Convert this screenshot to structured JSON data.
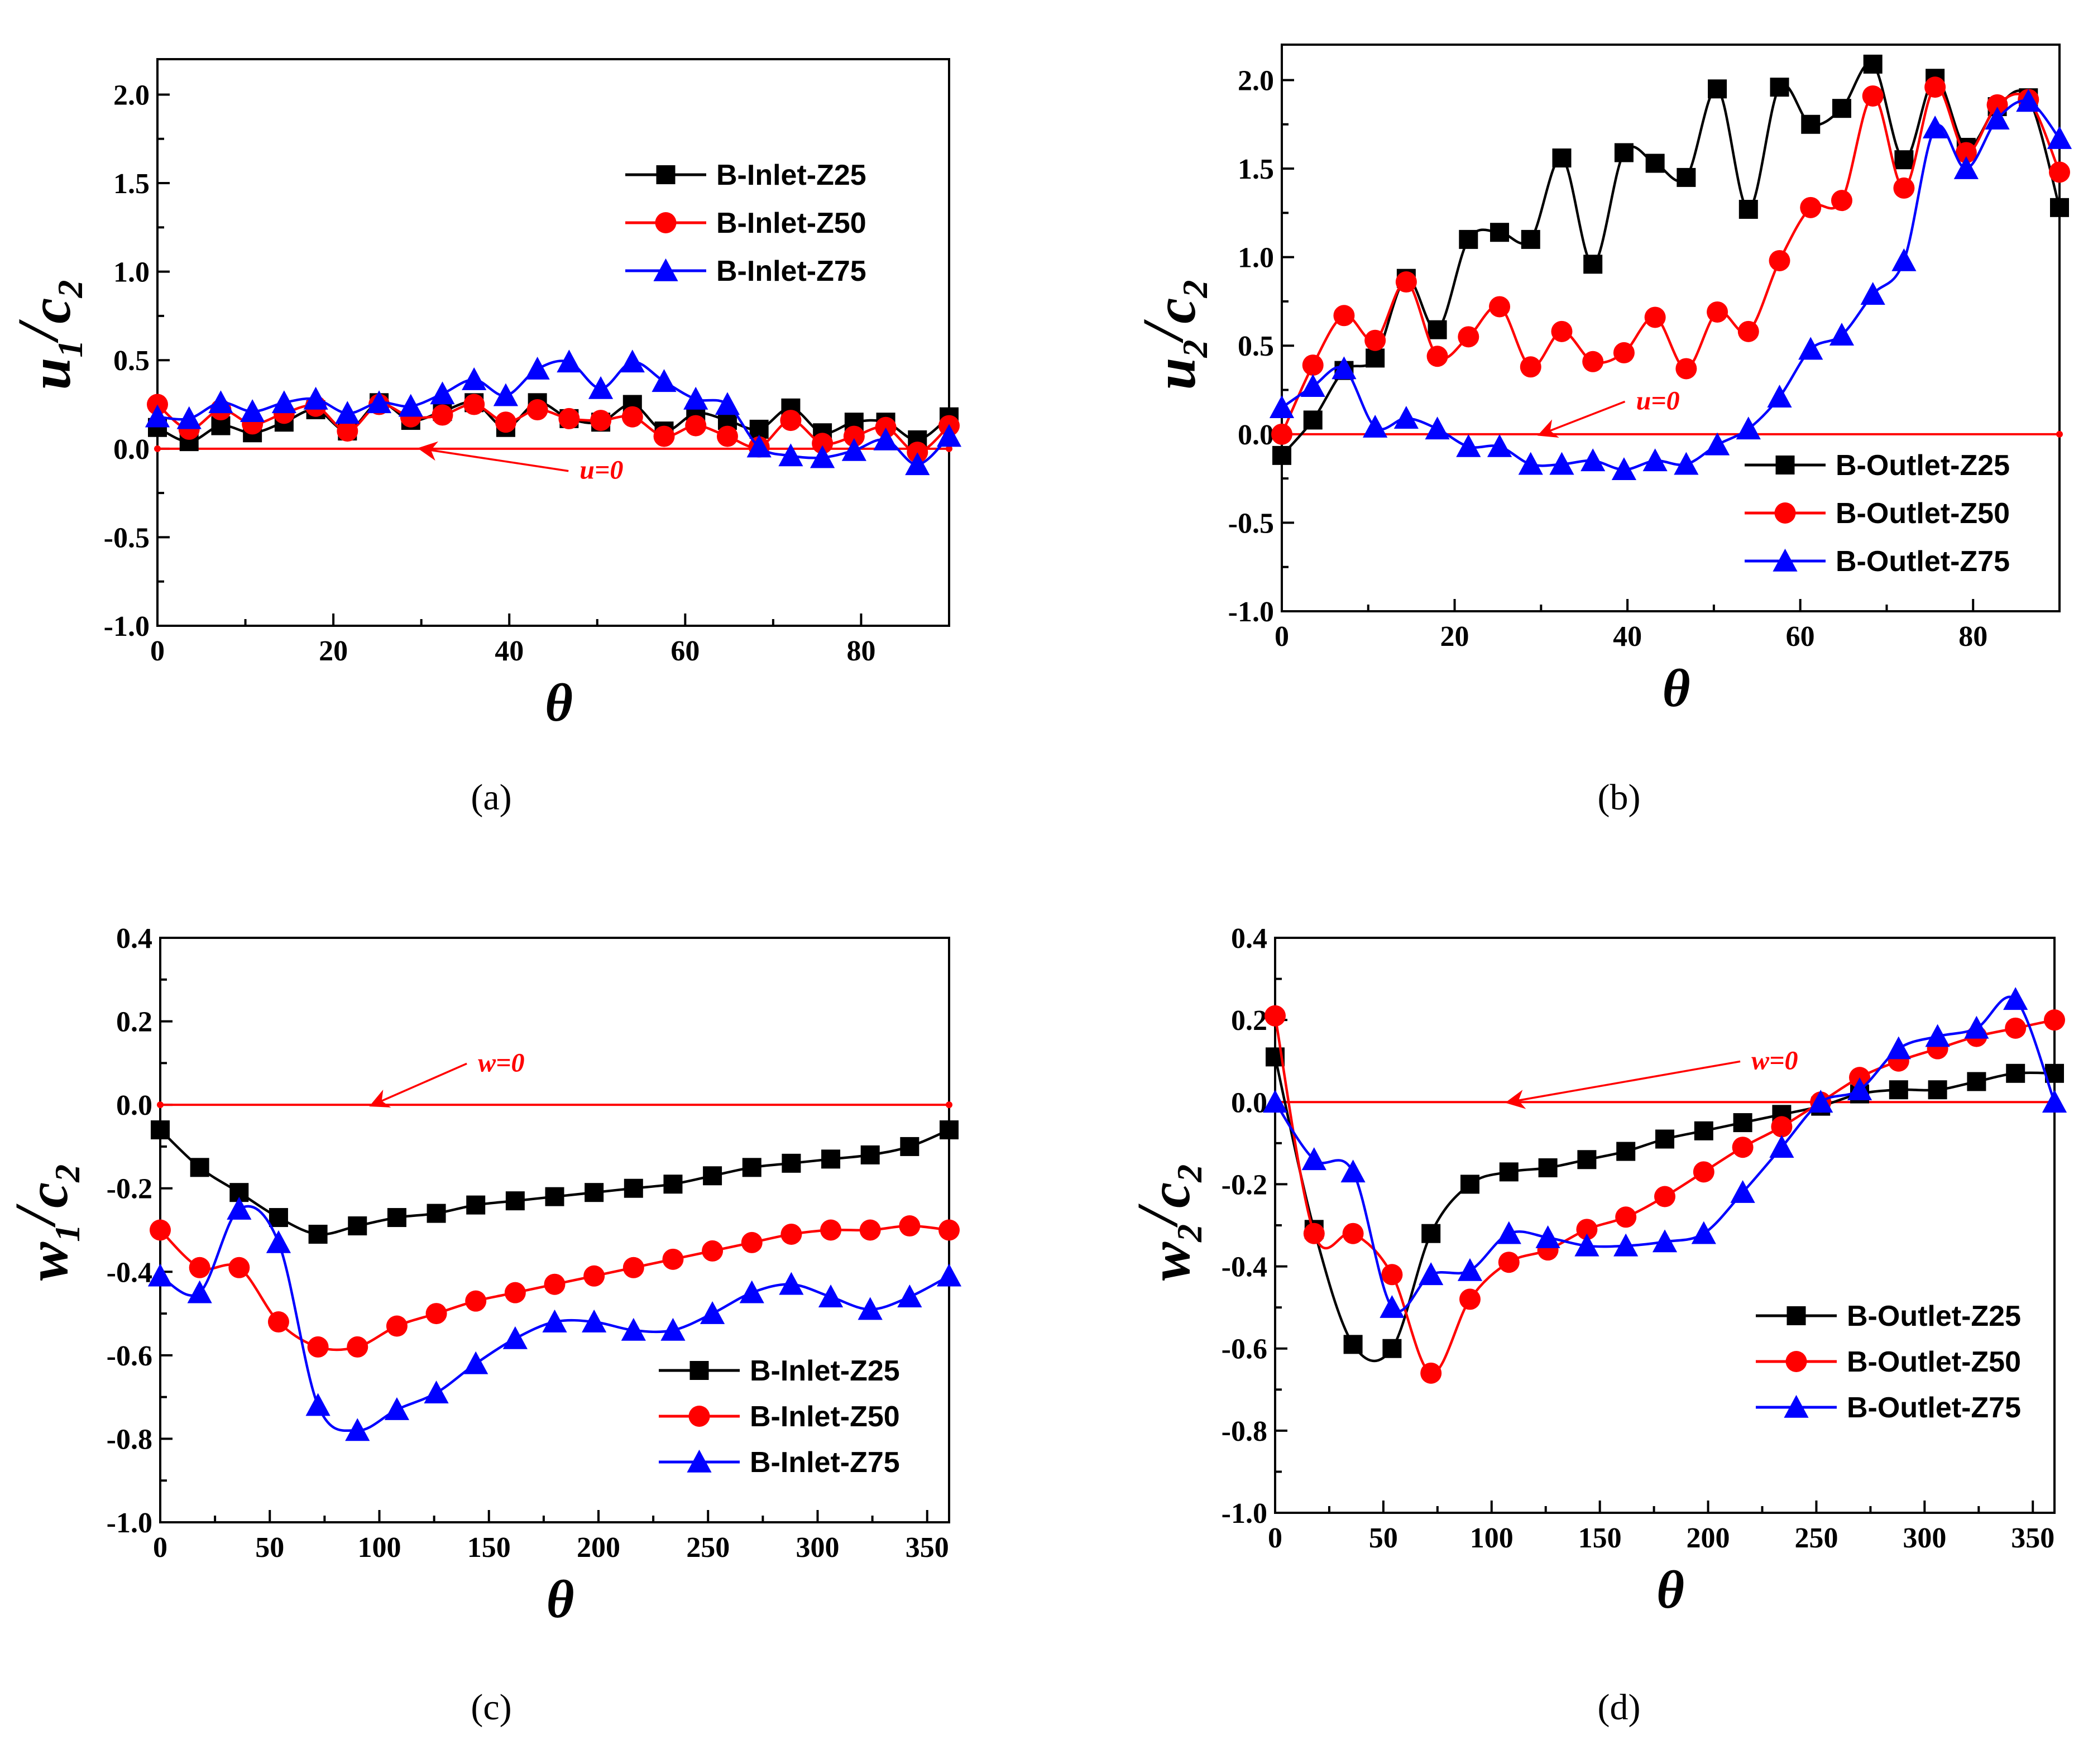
{
  "figure": {
    "captions": [
      "(a)",
      "(b)",
      "(c)",
      "(d)"
    ],
    "x_axis_symbol": "θ"
  },
  "chart_data": [
    {
      "id": "a",
      "type": "line",
      "caption": "(a)",
      "ylabel_main": "u",
      "ylabel_sub": "1",
      "ylabel_den": "c",
      "ylabel_den_sub": "2",
      "xlabel": "θ",
      "xlim": [
        0,
        90
      ],
      "ylim": [
        -1.0,
        2.2
      ],
      "xticks": [
        0,
        20,
        40,
        60,
        80
      ],
      "yticks": [
        -1.0,
        -0.5,
        0.0,
        0.5,
        1.0,
        1.5,
        2.0
      ],
      "ytick_labels": [
        "-1.0",
        "-0.5",
        "0.0",
        "0.5",
        "1.0",
        "1.5",
        "2.0"
      ],
      "legend_position": "upper-right",
      "reference": {
        "value": 0,
        "label": "u=0",
        "label_xy": [
          48,
          -0.17
        ],
        "arrow_to": [
          30,
          0.0
        ]
      },
      "series": [
        {
          "name": "B-Inlet-Z25",
          "color": "#000000",
          "marker": "square",
          "x": [
            0,
            3.6,
            7.2,
            10.8,
            14.4,
            18,
            21.6,
            25.2,
            28.8,
            32.4,
            36,
            39.6,
            43.2,
            46.8,
            50.4,
            54,
            57.6,
            61.2,
            64.8,
            68.4,
            72,
            75.6,
            79.2,
            82.8,
            86.4,
            90
          ],
          "y": [
            0.12,
            0.04,
            0.13,
            0.09,
            0.15,
            0.22,
            0.1,
            0.26,
            0.16,
            0.21,
            0.26,
            0.12,
            0.26,
            0.17,
            0.15,
            0.25,
            0.1,
            0.2,
            0.16,
            0.11,
            0.23,
            0.09,
            0.15,
            0.15,
            0.05,
            0.18
          ]
        },
        {
          "name": "B-Inlet-Z50",
          "color": "#ff0000",
          "marker": "circle",
          "x": [
            0,
            3.6,
            7.2,
            10.8,
            14.4,
            18,
            21.6,
            25.2,
            28.8,
            32.4,
            36,
            39.6,
            43.2,
            46.8,
            50.4,
            54,
            57.6,
            61.2,
            64.8,
            68.4,
            72,
            75.6,
            79.2,
            82.8,
            86.4,
            90
          ],
          "y": [
            0.25,
            0.11,
            0.22,
            0.14,
            0.2,
            0.24,
            0.1,
            0.25,
            0.18,
            0.19,
            0.25,
            0.15,
            0.22,
            0.17,
            0.16,
            0.18,
            0.07,
            0.13,
            0.07,
            0.01,
            0.16,
            0.03,
            0.07,
            0.12,
            -0.02,
            0.13
          ]
        },
        {
          "name": "B-Inlet-Z75",
          "color": "#0000ff",
          "marker": "triangle",
          "x": [
            0,
            3.6,
            7.2,
            10.8,
            14.4,
            18,
            21.6,
            25.2,
            28.8,
            32.4,
            36,
            39.6,
            43.2,
            46.8,
            50.4,
            54,
            57.6,
            61.2,
            64.8,
            68.4,
            72,
            75.6,
            79.2,
            82.8,
            86.4,
            90
          ],
          "y": [
            0.18,
            0.17,
            0.26,
            0.21,
            0.26,
            0.28,
            0.2,
            0.26,
            0.24,
            0.31,
            0.39,
            0.3,
            0.45,
            0.49,
            0.34,
            0.49,
            0.38,
            0.28,
            0.25,
            0.01,
            -0.04,
            -0.05,
            -0.01,
            0.05,
            -0.09,
            0.07
          ]
        }
      ]
    },
    {
      "id": "b",
      "type": "line",
      "caption": "(b)",
      "ylabel_main": "u",
      "ylabel_sub": "2",
      "ylabel_den": "c",
      "ylabel_den_sub": "2",
      "xlabel": "θ",
      "xlim": [
        0,
        90
      ],
      "ylim": [
        -1.0,
        2.2
      ],
      "xticks": [
        0,
        20,
        40,
        60,
        80
      ],
      "yticks": [
        -1.0,
        -0.5,
        0.0,
        0.5,
        1.0,
        1.5,
        2.0
      ],
      "ytick_labels": [
        "-1.0",
        "-0.5",
        "0.0",
        "0.5",
        "1.0",
        "1.5",
        "2.0"
      ],
      "legend_position": "lower-right",
      "reference": {
        "value": 0,
        "label": "u=0",
        "label_xy": [
          41,
          0.14
        ],
        "arrow_to": [
          30,
          0.0
        ]
      },
      "series": [
        {
          "name": "B-Outlet-Z25",
          "color": "#000000",
          "marker": "square",
          "x": [
            0,
            3.6,
            7.2,
            10.8,
            14.4,
            18,
            21.6,
            25.2,
            28.8,
            32.4,
            36,
            39.6,
            43.2,
            46.8,
            50.4,
            54,
            57.6,
            61.2,
            64.8,
            68.4,
            72,
            75.6,
            79.2,
            82.8,
            86.4,
            90
          ],
          "y": [
            -0.12,
            0.08,
            0.36,
            0.43,
            0.88,
            0.59,
            1.1,
            1.14,
            1.1,
            1.56,
            0.96,
            1.59,
            1.53,
            1.45,
            1.95,
            1.27,
            1.96,
            1.75,
            1.84,
            2.09,
            1.55,
            2.01,
            1.62,
            1.85,
            1.9,
            1.28
          ]
        },
        {
          "name": "B-Outlet-Z50",
          "color": "#ff0000",
          "marker": "circle",
          "x": [
            0,
            3.6,
            7.2,
            10.8,
            14.4,
            18,
            21.6,
            25.2,
            28.8,
            32.4,
            36,
            39.6,
            43.2,
            46.8,
            50.4,
            54,
            57.6,
            61.2,
            64.8,
            68.4,
            72,
            75.6,
            79.2,
            82.8,
            86.4,
            90
          ],
          "y": [
            0.0,
            0.39,
            0.67,
            0.53,
            0.86,
            0.44,
            0.55,
            0.72,
            0.38,
            0.58,
            0.41,
            0.46,
            0.66,
            0.37,
            0.69,
            0.58,
            0.98,
            1.28,
            1.32,
            1.91,
            1.39,
            1.96,
            1.59,
            1.86,
            1.89,
            1.48
          ]
        },
        {
          "name": "B-Outlet-Z75",
          "color": "#0000ff",
          "marker": "triangle",
          "x": [
            0,
            3.6,
            7.2,
            10.8,
            14.4,
            18,
            21.6,
            25.2,
            28.8,
            32.4,
            36,
            39.6,
            43.2,
            46.8,
            50.4,
            54,
            57.6,
            61.2,
            64.8,
            68.4,
            72,
            75.6,
            79.2,
            82.8,
            86.4,
            90
          ],
          "y": [
            0.15,
            0.27,
            0.37,
            0.04,
            0.09,
            0.03,
            -0.07,
            -0.07,
            -0.17,
            -0.17,
            -0.15,
            -0.2,
            -0.15,
            -0.17,
            -0.06,
            0.03,
            0.21,
            0.48,
            0.56,
            0.79,
            0.98,
            1.73,
            1.5,
            1.78,
            1.88,
            1.67
          ]
        }
      ]
    },
    {
      "id": "c",
      "type": "line",
      "caption": "(c)",
      "ylabel_main": "w",
      "ylabel_sub": "1",
      "ylabel_den": "c",
      "ylabel_den_sub": "2",
      "xlabel": "θ",
      "xlim": [
        0,
        360
      ],
      "ylim": [
        -1.0,
        0.4
      ],
      "xticks": [
        0,
        50,
        100,
        150,
        200,
        250,
        300,
        350
      ],
      "yticks": [
        -1.0,
        -0.8,
        -0.6,
        -0.4,
        -0.2,
        0.0,
        0.2,
        0.4
      ],
      "ytick_labels": [
        "-1.0",
        "-0.8",
        "-0.6",
        "-0.4",
        "-0.2",
        "0.0",
        "0.2",
        "0.4"
      ],
      "legend_position": "lower-right",
      "reference": {
        "value": 0,
        "label": "w=0",
        "label_xy": [
          145,
          0.08
        ],
        "arrow_to": [
          97,
          0.0
        ]
      },
      "series": [
        {
          "name": "B-Inlet-Z25",
          "color": "#000000",
          "marker": "square",
          "x": [
            0,
            18,
            36,
            54,
            72,
            90,
            108,
            126,
            144,
            162,
            180,
            198,
            216,
            234,
            252,
            270,
            288,
            306,
            324,
            342,
            360
          ],
          "y": [
            -0.06,
            -0.15,
            -0.21,
            -0.27,
            -0.31,
            -0.29,
            -0.27,
            -0.26,
            -0.24,
            -0.23,
            -0.22,
            -0.21,
            -0.2,
            -0.19,
            -0.17,
            -0.15,
            -0.14,
            -0.13,
            -0.12,
            -0.1,
            -0.06
          ]
        },
        {
          "name": "B-Inlet-Z50",
          "color": "#ff0000",
          "marker": "circle",
          "x": [
            0,
            18,
            36,
            54,
            72,
            90,
            108,
            126,
            144,
            162,
            180,
            198,
            216,
            234,
            252,
            270,
            288,
            306,
            324,
            342,
            360
          ],
          "y": [
            -0.3,
            -0.39,
            -0.39,
            -0.52,
            -0.58,
            -0.58,
            -0.53,
            -0.5,
            -0.47,
            -0.45,
            -0.43,
            -0.41,
            -0.39,
            -0.37,
            -0.35,
            -0.33,
            -0.31,
            -0.3,
            -0.3,
            -0.29,
            -0.3
          ]
        },
        {
          "name": "B-Inlet-Z75",
          "color": "#0000ff",
          "marker": "triangle",
          "x": [
            0,
            18,
            36,
            54,
            72,
            90,
            108,
            126,
            144,
            162,
            180,
            198,
            216,
            234,
            252,
            270,
            288,
            306,
            324,
            342,
            360
          ],
          "y": [
            -0.41,
            -0.45,
            -0.25,
            -0.33,
            -0.72,
            -0.78,
            -0.73,
            -0.69,
            -0.62,
            -0.56,
            -0.52,
            -0.52,
            -0.54,
            -0.54,
            -0.5,
            -0.45,
            -0.43,
            -0.46,
            -0.49,
            -0.46,
            -0.41
          ]
        }
      ]
    },
    {
      "id": "d",
      "type": "line",
      "caption": "(d)",
      "ylabel_main": "w",
      "ylabel_sub": "2",
      "ylabel_den": "c",
      "ylabel_den_sub": "2",
      "xlabel": "θ",
      "xlim": [
        0,
        360
      ],
      "ylim": [
        -1.0,
        0.4
      ],
      "xticks": [
        0,
        50,
        100,
        150,
        200,
        250,
        300,
        350
      ],
      "yticks": [
        -1.0,
        -0.8,
        -0.6,
        -0.4,
        -0.2,
        0.0,
        0.2,
        0.4
      ],
      "ytick_labels": [
        "-1.0",
        "-0.8",
        "-0.6",
        "-0.4",
        "-0.2",
        "0.0",
        "0.2",
        "0.4"
      ],
      "legend_position": "lower-right",
      "reference": {
        "value": 0,
        "label": "w=0",
        "label_xy": [
          220,
          0.08
        ],
        "arrow_to": [
          108,
          0.0
        ]
      },
      "series": [
        {
          "name": "B-Outlet-Z25",
          "color": "#000000",
          "marker": "square",
          "x": [
            0,
            18,
            36,
            54,
            72,
            90,
            108,
            126,
            144,
            162,
            180,
            198,
            216,
            234,
            252,
            270,
            288,
            306,
            324,
            342,
            360
          ],
          "y": [
            0.11,
            -0.31,
            -0.59,
            -0.6,
            -0.32,
            -0.2,
            -0.17,
            -0.16,
            -0.14,
            -0.12,
            -0.09,
            -0.07,
            -0.05,
            -0.03,
            -0.01,
            0.02,
            0.03,
            0.03,
            0.05,
            0.07,
            0.07
          ]
        },
        {
          "name": "B-Outlet-Z50",
          "color": "#ff0000",
          "marker": "circle",
          "x": [
            0,
            18,
            36,
            54,
            72,
            90,
            108,
            126,
            144,
            162,
            180,
            198,
            216,
            234,
            252,
            270,
            288,
            306,
            324,
            342,
            360
          ],
          "y": [
            0.21,
            -0.32,
            -0.32,
            -0.42,
            -0.66,
            -0.48,
            -0.39,
            -0.36,
            -0.31,
            -0.28,
            -0.23,
            -0.17,
            -0.11,
            -0.06,
            0.0,
            0.06,
            0.1,
            0.13,
            0.16,
            0.18,
            0.2
          ]
        },
        {
          "name": "B-Outlet-Z75",
          "color": "#0000ff",
          "marker": "triangle",
          "x": [
            0,
            18,
            36,
            54,
            72,
            90,
            108,
            126,
            144,
            162,
            180,
            198,
            216,
            234,
            252,
            270,
            288,
            306,
            324,
            342,
            360
          ],
          "y": [
            0.0,
            -0.14,
            -0.17,
            -0.5,
            -0.42,
            -0.41,
            -0.32,
            -0.33,
            -0.35,
            -0.35,
            -0.34,
            -0.32,
            -0.22,
            -0.11,
            0.0,
            0.03,
            0.13,
            0.16,
            0.18,
            0.25,
            0.0
          ]
        }
      ]
    }
  ]
}
